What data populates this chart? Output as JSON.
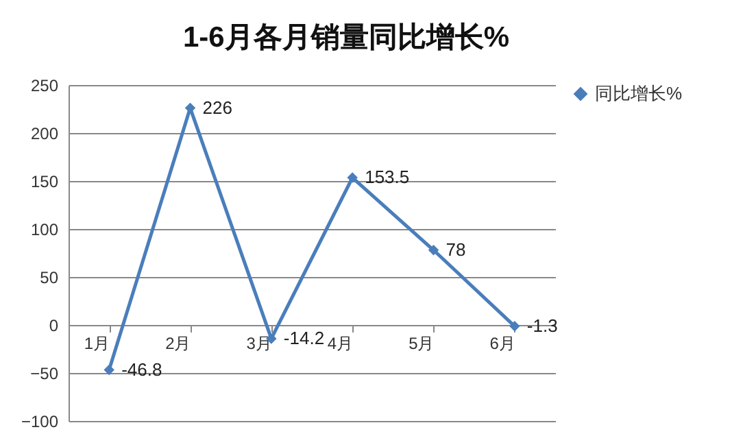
{
  "chart_data": {
    "type": "line",
    "title": "1-6月各月销量同比增长%",
    "categories": [
      "1月",
      "2月",
      "3月",
      "4月",
      "5月",
      "6月"
    ],
    "series": [
      {
        "name": "同比增长%",
        "color": "#4a7ebb",
        "values": [
          -46.8,
          226,
          -14.2,
          153.5,
          78,
          -1.3
        ]
      }
    ],
    "ylim": [
      -100,
      250
    ],
    "yticks": [
      -100,
      -50,
      0,
      50,
      100,
      150,
      200,
      250
    ],
    "grid": "y",
    "legend": "right",
    "marker": "diamond",
    "line_style": "solid",
    "data_labels": true
  }
}
